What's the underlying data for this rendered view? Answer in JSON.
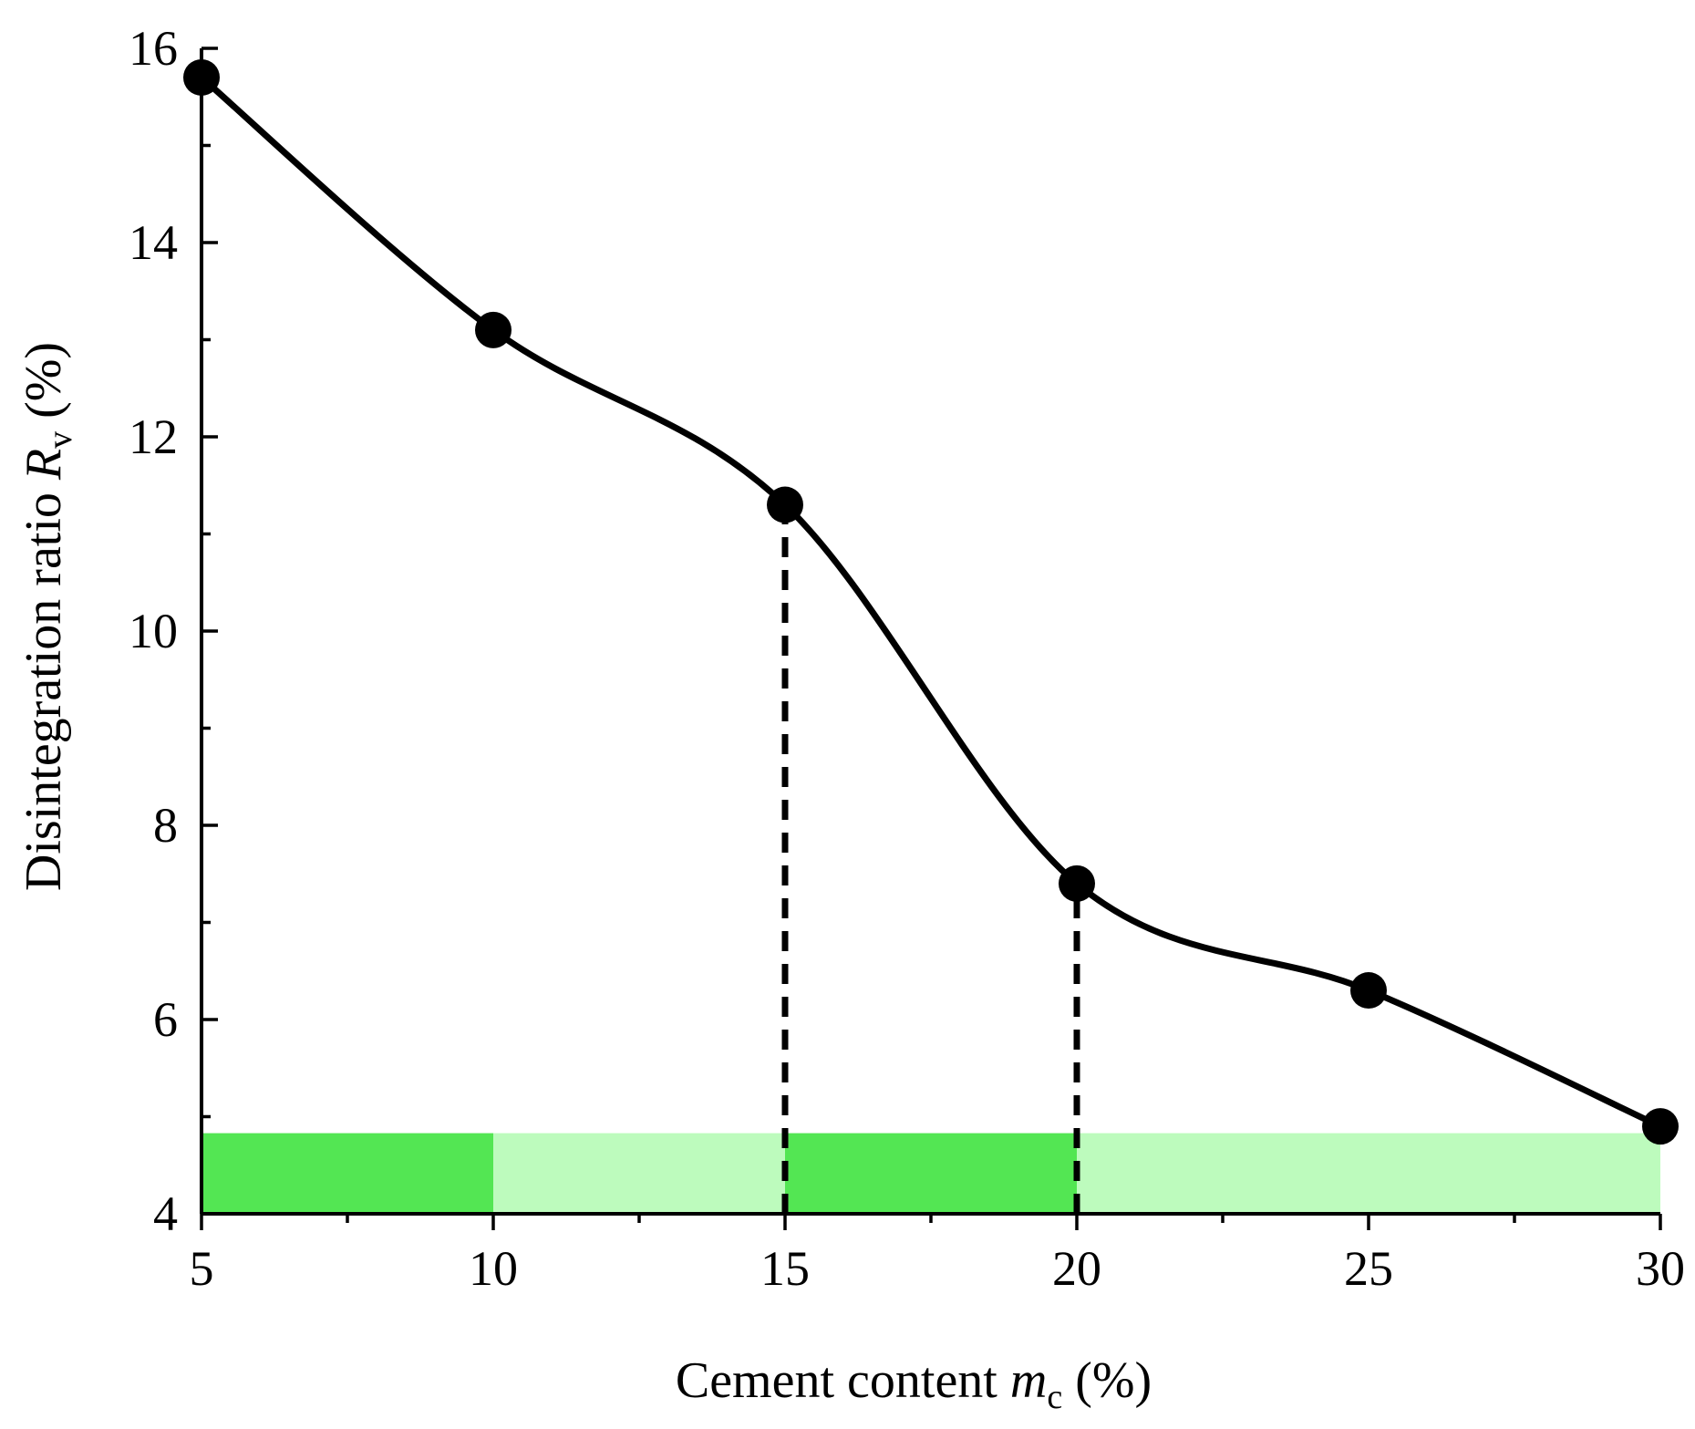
{
  "chart_data": {
    "type": "line",
    "title": "",
    "xlabel": {
      "prefix": "Cement content ",
      "symbol": "m",
      "subscript": "c",
      "suffix": " (%)"
    },
    "ylabel": {
      "prefix": "Disintegration ratio ",
      "symbol": "R",
      "subscript": "v",
      "suffix": " (%)"
    },
    "xlim": [
      5,
      30
    ],
    "ylim": [
      4,
      16
    ],
    "x_ticks": [
      "5",
      "10",
      "15",
      "20",
      "25",
      "30"
    ],
    "y_ticks": [
      "4",
      "6",
      "8",
      "10",
      "12",
      "14",
      "16"
    ],
    "x_minor_step": 2.5,
    "y_minor_step": 1,
    "grid": false,
    "series": [
      {
        "x": [
          5,
          10,
          15,
          20,
          25,
          30
        ],
        "y": [
          15.7,
          13.1,
          11.3,
          7.4,
          6.3,
          4.9
        ],
        "color": "#000000",
        "smooth": true,
        "marker": "circle"
      }
    ],
    "reference_lines": [
      {
        "x": 15,
        "y_from": 4,
        "y_to": 11.3,
        "style": "dashed"
      },
      {
        "x": 20,
        "y_from": 4,
        "y_to": 7.4,
        "style": "dashed"
      }
    ],
    "bands": [
      {
        "x_from": 5,
        "x_to": 10,
        "y_from": 4,
        "y_to": 4.83,
        "color": "#53e653"
      },
      {
        "x_from": 10,
        "x_to": 15,
        "y_from": 4,
        "y_to": 4.83,
        "color": "#bdfbbd"
      },
      {
        "x_from": 15,
        "x_to": 20,
        "y_from": 4,
        "y_to": 4.83,
        "color": "#53e653"
      },
      {
        "x_from": 20,
        "x_to": 30,
        "y_from": 4,
        "y_to": 4.83,
        "color": "#bdfbbd"
      }
    ]
  }
}
